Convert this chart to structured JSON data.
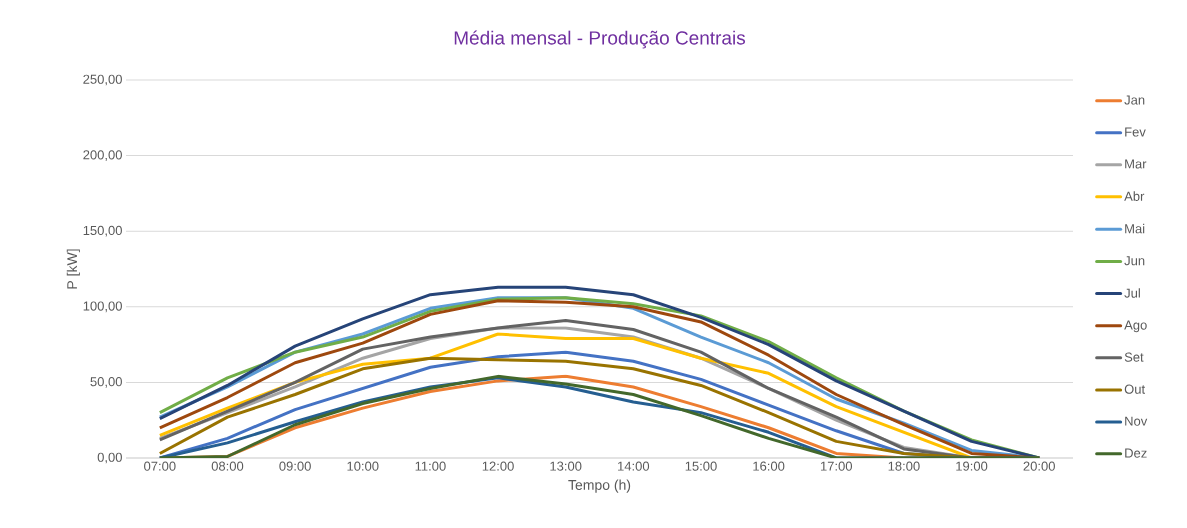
{
  "chart_data": {
    "type": "line",
    "title": "Média mensal - Produção Centrais",
    "xlabel": "Tempo (h)",
    "ylabel": "P [kW]",
    "categories": [
      "07:00",
      "08:00",
      "09:00",
      "10:00",
      "11:00",
      "12:00",
      "13:00",
      "14:00",
      "15:00",
      "16:00",
      "17:00",
      "18:00",
      "19:00",
      "20:00"
    ],
    "ylim": [
      0,
      250
    ],
    "yticks": [
      {
        "value": 0,
        "label": "0,00"
      },
      {
        "value": 50,
        "label": "50,00"
      },
      {
        "value": 100,
        "label": "100,00"
      },
      {
        "value": 150,
        "label": "150,00"
      },
      {
        "value": 200,
        "label": "200,00"
      },
      {
        "value": 250,
        "label": "250,00"
      }
    ],
    "grid": "y",
    "legend": "right",
    "series": [
      {
        "name": "Jan",
        "color": "#ed7d31",
        "values": [
          0,
          1,
          20,
          33,
          44,
          51,
          54,
          47,
          34,
          20,
          3,
          0,
          0,
          0
        ]
      },
      {
        "name": "Fev",
        "color": "#4472c4",
        "values": [
          0,
          13,
          32,
          46,
          60,
          67,
          70,
          64,
          52,
          35,
          18,
          3,
          0,
          0
        ]
      },
      {
        "name": "Mar",
        "color": "#a5a5a5",
        "values": [
          13,
          30,
          47,
          66,
          79,
          86,
          86,
          80,
          66,
          46,
          25,
          7,
          0,
          0
        ]
      },
      {
        "name": "Abr",
        "color": "#ffc000",
        "values": [
          15,
          33,
          50,
          62,
          66,
          82,
          79,
          79,
          66,
          56,
          34,
          17,
          0,
          0
        ]
      },
      {
        "name": "Mai",
        "color": "#5b9bd5",
        "values": [
          27,
          47,
          70,
          82,
          99,
          106,
          106,
          99,
          80,
          63,
          39,
          23,
          5,
          0
        ]
      },
      {
        "name": "Jun",
        "color": "#70ad47",
        "values": [
          30,
          53,
          70,
          80,
          97,
          105,
          106,
          102,
          94,
          77,
          53,
          31,
          12,
          0
        ]
      },
      {
        "name": "Jul",
        "color": "#264478",
        "values": [
          26,
          48,
          74,
          92,
          108,
          113,
          113,
          108,
          93,
          75,
          51,
          31,
          11,
          0
        ]
      },
      {
        "name": "Ago",
        "color": "#9e480e",
        "values": [
          20,
          40,
          63,
          76,
          95,
          104,
          103,
          100,
          90,
          68,
          42,
          22,
          3,
          0
        ]
      },
      {
        "name": "Set",
        "color": "#636363",
        "values": [
          12,
          31,
          50,
          72,
          80,
          86,
          91,
          85,
          70,
          46,
          27,
          6,
          0,
          0
        ]
      },
      {
        "name": "Out",
        "color": "#997300",
        "values": [
          3,
          27,
          42,
          59,
          66,
          65,
          64,
          59,
          48,
          30,
          11,
          3,
          0,
          0
        ]
      },
      {
        "name": "Nov",
        "color": "#255e91",
        "values": [
          0,
          10,
          24,
          37,
          47,
          53,
          47,
          37,
          30,
          17,
          0,
          0,
          0,
          0
        ]
      },
      {
        "name": "Dez",
        "color": "#43682b",
        "values": [
          0,
          1,
          22,
          36,
          46,
          54,
          49,
          42,
          28,
          13,
          0,
          0,
          0,
          0
        ]
      }
    ]
  }
}
